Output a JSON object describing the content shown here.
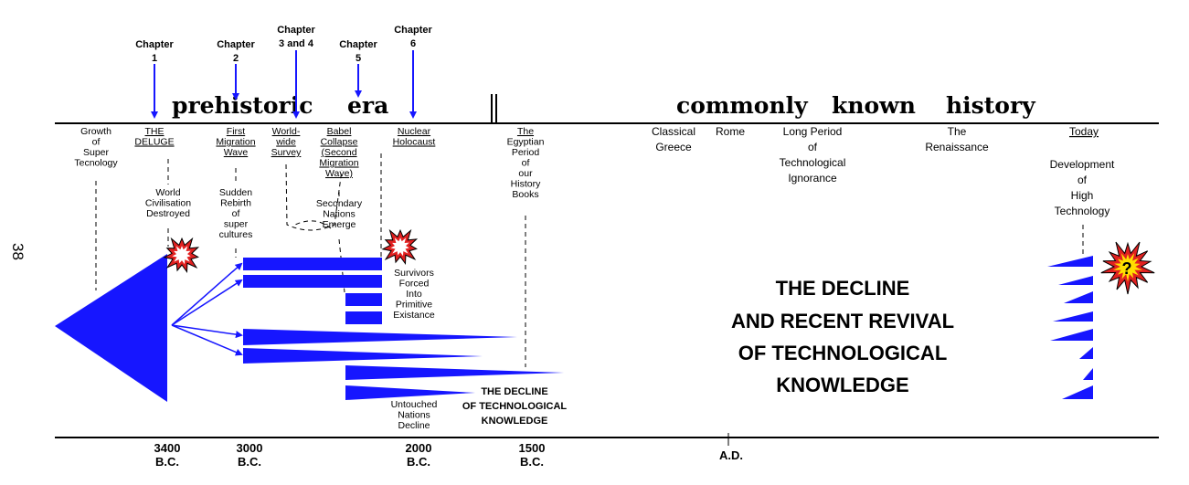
{
  "page_number": "38",
  "eras": {
    "prehistoric": [
      "prehistoric",
      "era"
    ],
    "history": [
      "commonly",
      "known",
      "history"
    ]
  },
  "chapters": [
    [
      "Chapter",
      "1"
    ],
    [
      "Chapter",
      "2"
    ],
    [
      "Chapter",
      "3 and 4"
    ],
    [
      "Chapter",
      "5"
    ],
    [
      "Chapter",
      "6"
    ]
  ],
  "upper_labels": [
    {
      "lines": [
        "Growth",
        "of",
        "Super",
        "Tecnology"
      ],
      "underline": false
    },
    {
      "lines": [
        "THE",
        "DELUGE"
      ],
      "underline": true
    },
    {
      "lines": [
        "World",
        "Civilisation",
        "Destroyed"
      ],
      "underline": false
    },
    {
      "lines": [
        "First",
        "Migration",
        "Wave"
      ],
      "underline": true
    },
    {
      "lines": [
        "Sudden",
        "Rebirth",
        "of",
        "super",
        "cultures"
      ],
      "underline": false
    },
    {
      "lines": [
        "World-",
        "wide",
        "Survey"
      ],
      "underline": true
    },
    {
      "lines": [
        "Babel",
        "Collapse",
        "(Second",
        "Migration",
        "Wave)"
      ],
      "underline": true
    },
    {
      "lines": [
        "Secondary",
        "Nations",
        "Emerge"
      ],
      "underline": false
    },
    {
      "lines": [
        "Nuclear",
        "Holocaust"
      ],
      "underline": true
    },
    {
      "lines": [
        "Survivors",
        "Forced",
        "Into",
        "Primitive",
        "Existance"
      ],
      "underline": false
    },
    {
      "lines": [
        "Untouched",
        "Nations",
        "Decline"
      ],
      "underline": false
    },
    {
      "lines": [
        "The",
        "Egyptian",
        "Period",
        "of",
        "our",
        "History",
        "Books"
      ],
      "underline": false,
      "underline_first": true
    },
    {
      "lines": [
        "Classical",
        "Greece"
      ],
      "underline": false
    },
    {
      "lines": [
        "Rome"
      ],
      "underline": false
    },
    {
      "lines": [
        "Long Period",
        "of",
        "Technological",
        "Ignorance"
      ],
      "underline": false
    },
    {
      "lines": [
        "The",
        "Renaissance"
      ],
      "underline": false
    },
    {
      "lines": [
        "Today"
      ],
      "underline": true
    },
    {
      "lines": [
        "Development",
        "of",
        "High",
        "Technology"
      ],
      "underline": false
    }
  ],
  "small_title": [
    "THE DECLINE",
    "OF TECHNOLOGICAL",
    "KNOWLEDGE"
  ],
  "big_title": [
    "THE DECLINE",
    "AND RECENT REVIVAL",
    "OF TECHNOLOGICAL",
    "KNOWLEDGE"
  ],
  "question_mark": "?",
  "timeline": [
    {
      "year": "3400",
      "era": "B.C."
    },
    {
      "year": "3000",
      "era": "B.C."
    },
    {
      "year": "2000",
      "era": "B.C."
    },
    {
      "year": "1500",
      "era": "B.C."
    },
    {
      "year": "",
      "era": "A.D."
    }
  ],
  "colors": {
    "blue": "#1616ff",
    "explosion_red": "#e02020",
    "explosion_yellow": "#ffe000",
    "line": "#000000"
  }
}
